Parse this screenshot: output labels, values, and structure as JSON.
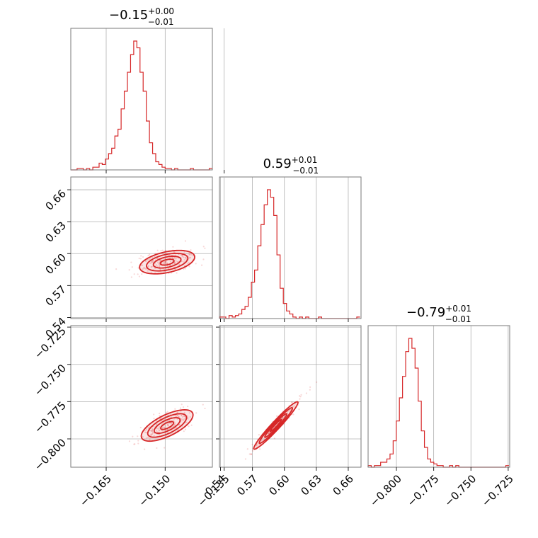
{
  "chart_data": {
    "type": "corner",
    "color": "#d62728",
    "parameters": [
      {
        "title": {
          "median": "−0.15",
          "plus": "+0.00",
          "minus": "−0.01"
        },
        "range": [
          -0.174,
          -0.138
        ],
        "ticks": [
          -0.165,
          -0.15,
          -0.135
        ],
        "tick_labels": [
          "−0.165",
          "−0.150",
          "−0.135"
        ],
        "histogram": {
          "bin_start": -0.174,
          "bin_width": 0.0008,
          "counts": [
            0,
            0,
            1,
            1,
            0,
            1,
            0,
            2,
            2,
            5,
            4,
            8,
            12,
            16,
            25,
            30,
            45,
            58,
            72,
            85,
            95,
            90,
            72,
            58,
            36,
            20,
            12,
            6,
            4,
            2,
            1,
            1,
            0,
            1,
            0,
            0,
            0,
            0,
            1,
            0,
            0,
            0,
            0,
            0,
            1
          ]
        }
      },
      {
        "title": {
          "median": "0.59",
          "plus": "+0.01",
          "minus": "−0.01"
        },
        "range": [
          0.539,
          0.672
        ],
        "ticks": [
          0.54,
          0.57,
          0.6,
          0.63,
          0.66
        ],
        "tick_labels": [
          "0.54",
          "0.57",
          "0.60",
          "0.63",
          "0.66"
        ],
        "histogram": {
          "bin_start": 0.539,
          "bin_width": 0.003,
          "counts": [
            1,
            1,
            0,
            2,
            1,
            2,
            3,
            6,
            8,
            14,
            24,
            32,
            48,
            62,
            75,
            85,
            80,
            68,
            42,
            20,
            10,
            5,
            3,
            1,
            0,
            1,
            0,
            1,
            0,
            0,
            0,
            1,
            0,
            0,
            0,
            0,
            0,
            0,
            0,
            0,
            0,
            0,
            0,
            1
          ]
        }
      },
      {
        "title": {
          "median": "−0.79",
          "plus": "+0.01",
          "minus": "−0.01"
        },
        "range": [
          -0.819,
          -0.724
        ],
        "ticks": [
          -0.8,
          -0.775,
          -0.75,
          -0.725
        ],
        "tick_labels": [
          "−0.800",
          "−0.775",
          "−0.750",
          "−0.725"
        ],
        "histogram": {
          "bin_start": -0.819,
          "bin_width": 0.0021,
          "counts": [
            1,
            0,
            1,
            1,
            3,
            3,
            5,
            8,
            16,
            28,
            42,
            55,
            70,
            78,
            72,
            60,
            40,
            22,
            12,
            5,
            3,
            2,
            1,
            1,
            0,
            0,
            1,
            0,
            1,
            0,
            0,
            0,
            0,
            0,
            0,
            0,
            0,
            0,
            0,
            0,
            0,
            0,
            0,
            0,
            1
          ]
        }
      }
    ],
    "pairs": [
      {
        "x_param": 0,
        "y_param": 1,
        "center": [
          -0.1495,
          0.592
        ],
        "slope": 2.55,
        "along_sd": 0.0058,
        "across_sd": 0.003
      },
      {
        "x_param": 0,
        "y_param": 2,
        "center": [
          -0.1495,
          -0.791
        ],
        "slope": 1.95,
        "along_sd": 0.0058,
        "across_sd": 0.0022
      },
      {
        "x_param": 1,
        "y_param": 2,
        "center": [
          0.592,
          -0.791
        ],
        "slope": 0.76,
        "along_sd": 0.013,
        "across_sd": 0.0016
      }
    ],
    "grid": true
  }
}
